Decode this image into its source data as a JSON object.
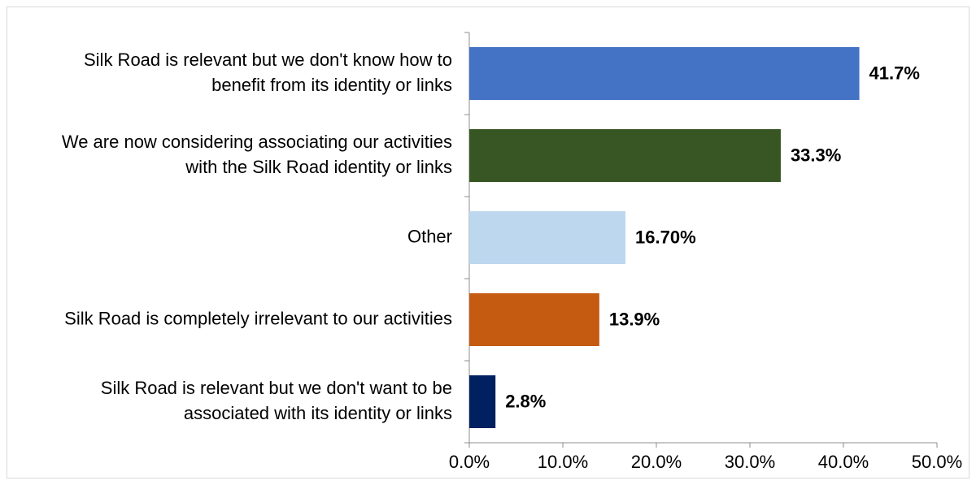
{
  "chart_data": {
    "type": "bar",
    "orientation": "horizontal",
    "title": "",
    "xlabel": "",
    "ylabel": "",
    "xlim": [
      0,
      50
    ],
    "grid": false,
    "legend": "none",
    "categories": [
      [
        "Silk Road is relevant but we don't know how to",
        "benefit from its identity or links"
      ],
      [
        "We are now considering associating our activities",
        "with the Silk Road identity or links"
      ],
      [
        "Other"
      ],
      [
        "Silk Road is completely irrelevant to our activities"
      ],
      [
        "Silk Road is relevant but we don't want to be",
        "associated with its identity or links"
      ]
    ],
    "values": [
      41.7,
      33.3,
      16.7,
      13.9,
      2.8
    ],
    "data_labels": [
      "41.7%",
      "33.3%",
      "16.70%",
      "13.9%",
      "2.8%"
    ],
    "colors": [
      "#4472c4",
      "#375623",
      "#bdd7ee",
      "#c55a11",
      "#002060"
    ],
    "x_ticks": [
      0,
      10,
      20,
      30,
      40,
      50
    ],
    "x_tick_labels": [
      "0.0%",
      "10.0%",
      "20.0%",
      "30.0%",
      "40.0%",
      "50.0%"
    ]
  }
}
